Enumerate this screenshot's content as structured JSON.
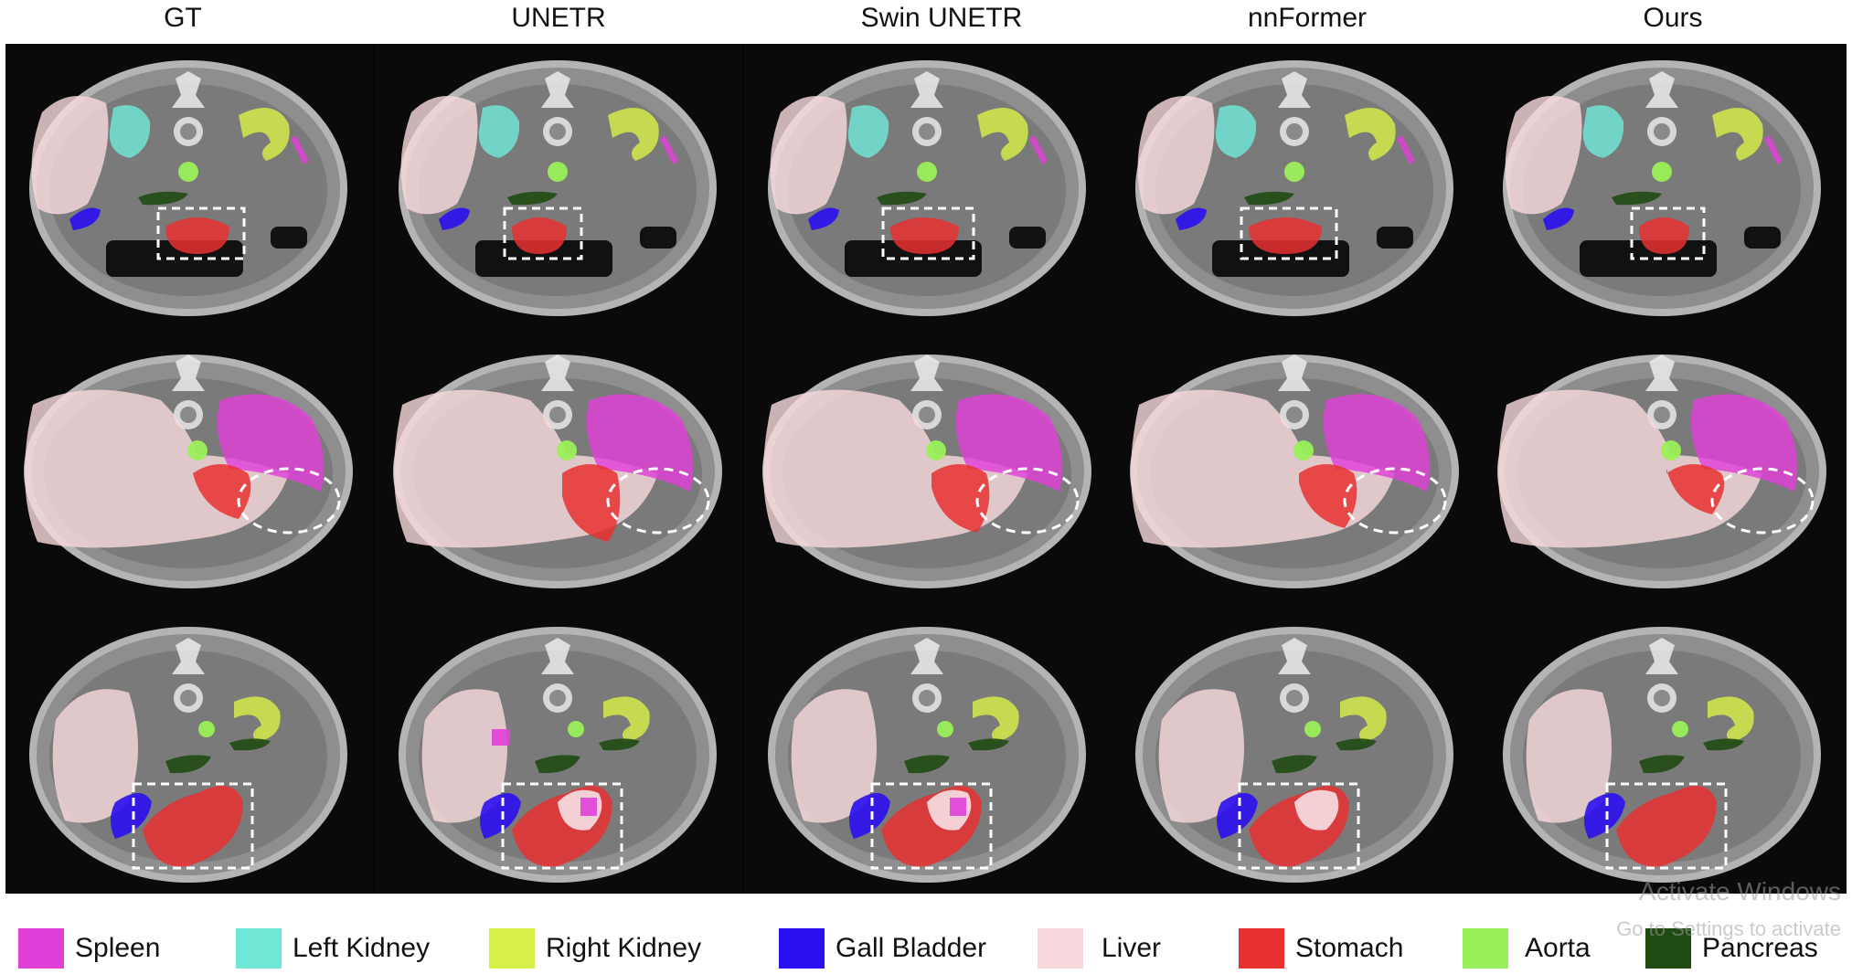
{
  "columns": [
    {
      "label": "GT"
    },
    {
      "label": "UNETR"
    },
    {
      "label": "Swin UNETR"
    },
    {
      "label": "nnFormer"
    },
    {
      "label": "Ours"
    }
  ],
  "legend": [
    {
      "label": "Spleen",
      "color": "#e040d8"
    },
    {
      "label": "Left Kidney",
      "color": "#70e8d8"
    },
    {
      "label": "Right Kidney",
      "color": "#d8ee48"
    },
    {
      "label": "Gall Bladder",
      "color": "#2a10f0"
    },
    {
      "label": "Liver",
      "color": "#f6d8dc"
    },
    {
      "label": "Stomach",
      "color": "#e83030"
    },
    {
      "label": "Aorta",
      "color": "#9af05a"
    },
    {
      "label": "Pancreas",
      "color": "#1f4a12"
    }
  ],
  "watermark": {
    "line1": "Activate Windows",
    "line2": "Go to Settings to activate"
  }
}
